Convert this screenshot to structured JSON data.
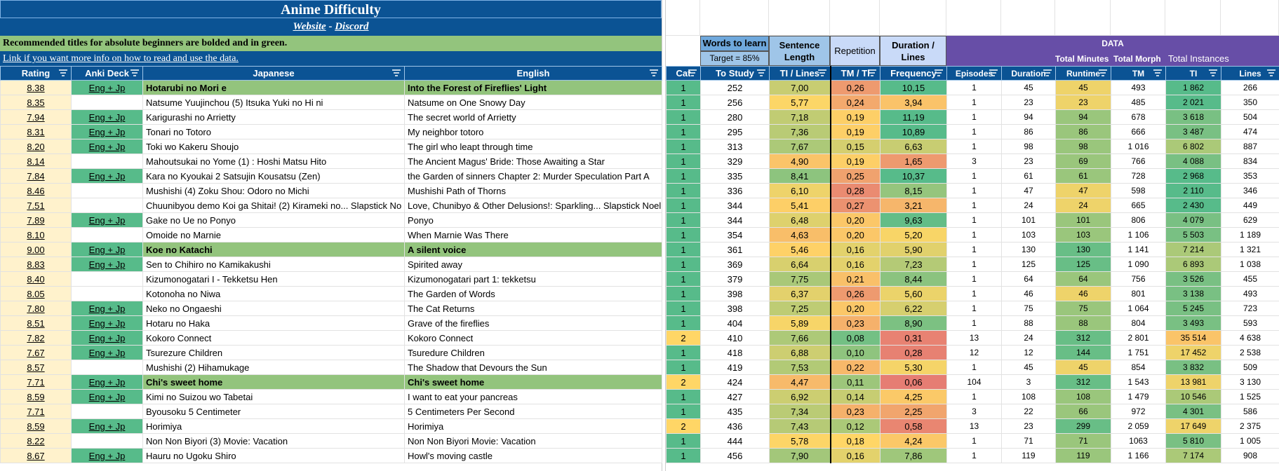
{
  "header": {
    "title": "Anime Difficulty",
    "link_website": "Website",
    "link_separator": " - ",
    "link_discord": "Discord",
    "info_line": "Recommended titles for absolute beginners are bolded and in green.",
    "info_link": "Link if you want more info on how to read and use the data."
  },
  "right_header": {
    "words_to_learn": "Words to learn",
    "target": "Target = 85%",
    "sentence_length": "Sentence Length",
    "repetition": "Repetition",
    "duration_lines": "Duration / Lines",
    "data": "DATA",
    "total_minutes": "Total Minutes",
    "total_morph": "Total Morph",
    "total_instances": "Total Instances"
  },
  "columns_left": [
    "Rating",
    "Anki Deck",
    "Japanese",
    "English"
  ],
  "columns_right": [
    "Cat",
    "To Study",
    "TI / Lines",
    "TM / TI",
    "Frequency",
    "Episodes",
    "Duration",
    "Runtime",
    "TM",
    "TI",
    "Lines"
  ],
  "colors": {
    "accent": "#0b5394",
    "green_row": "#93c47d",
    "purple": "#674ea7"
  },
  "rows": [
    {
      "rating": "8.38",
      "deck": "Eng + Jp",
      "jp": "Hotarubi no Mori e",
      "en": "Into the Forest of Fireflies' Light",
      "bold": true,
      "cat": "1",
      "study": "252",
      "til": "7,00",
      "tmti": "0,26",
      "freq": "10,15",
      "ep": "1",
      "dur": "45",
      "run": "45",
      "tm": "493",
      "ti": "1 862",
      "lines": "266"
    },
    {
      "rating": "8.35",
      "deck": "",
      "jp": "Natsume Yuujinchou (5) Itsuka Yuki no Hi ni",
      "en": "Natsume on One Snowy Day",
      "bold": false,
      "cat": "1",
      "study": "256",
      "til": "5,77",
      "tmti": "0,24",
      "freq": "3,94",
      "ep": "1",
      "dur": "23",
      "run": "23",
      "tm": "485",
      "ti": "2 021",
      "lines": "350"
    },
    {
      "rating": "7.94",
      "deck": "Eng + Jp",
      "jp": "Karigurashi no Arrietty",
      "en": "The secret world of Arrietty",
      "bold": false,
      "cat": "1",
      "study": "280",
      "til": "7,18",
      "tmti": "0,19",
      "freq": "11,19",
      "ep": "1",
      "dur": "94",
      "run": "94",
      "tm": "678",
      "ti": "3 618",
      "lines": "504"
    },
    {
      "rating": "8.31",
      "deck": "Eng + Jp",
      "jp": "Tonari no Totoro",
      "en": "My neighbor totoro",
      "bold": false,
      "cat": "1",
      "study": "295",
      "til": "7,36",
      "tmti": "0,19",
      "freq": "10,89",
      "ep": "1",
      "dur": "86",
      "run": "86",
      "tm": "666",
      "ti": "3 487",
      "lines": "474"
    },
    {
      "rating": "8.20",
      "deck": "Eng + Jp",
      "jp": "Toki wo Kakeru Shoujo",
      "en": "The girl who leapt through time",
      "bold": false,
      "cat": "1",
      "study": "313",
      "til": "7,67",
      "tmti": "0,15",
      "freq": "6,63",
      "ep": "1",
      "dur": "98",
      "run": "98",
      "tm": "1 016",
      "ti": "6 802",
      "lines": "887"
    },
    {
      "rating": "8.14",
      "deck": "",
      "jp": "Mahoutsukai no Yome (1) : Hoshi Matsu Hito",
      "en": "The Ancient Magus' Bride: Those Awaiting a Star",
      "bold": false,
      "cat": "1",
      "study": "329",
      "til": "4,90",
      "tmti": "0,19",
      "freq": "1,65",
      "ep": "3",
      "dur": "23",
      "run": "69",
      "tm": "766",
      "ti": "4 088",
      "lines": "834"
    },
    {
      "rating": "7.84",
      "deck": "Eng + Jp",
      "jp": "Kara no Kyoukai 2 Satsujin Kousatsu (Zen)",
      "en": "the Garden of sinners Chapter 2: Murder Speculation Part A",
      "bold": false,
      "cat": "1",
      "study": "335",
      "til": "8,41",
      "tmti": "0,25",
      "freq": "10,37",
      "ep": "1",
      "dur": "61",
      "run": "61",
      "tm": "728",
      "ti": "2 968",
      "lines": "353"
    },
    {
      "rating": "8.46",
      "deck": "",
      "jp": "Mushishi (4) Zoku Shou: Odoro no Michi",
      "en": "Mushishi Path of Thorns",
      "bold": false,
      "cat": "1",
      "study": "336",
      "til": "6,10",
      "tmti": "0,28",
      "freq": "8,15",
      "ep": "1",
      "dur": "47",
      "run": "47",
      "tm": "598",
      "ti": "2 110",
      "lines": "346"
    },
    {
      "rating": "7.51",
      "deck": "",
      "jp": "Chuunibyou demo Koi ga Shitai! (2) Kirameki no... Slapstick No",
      "en": "Love, Chunibyo & Other Delusions!: Sparkling... Slapstick Noel",
      "bold": false,
      "cat": "1",
      "study": "344",
      "til": "5,41",
      "tmti": "0,27",
      "freq": "3,21",
      "ep": "1",
      "dur": "24",
      "run": "24",
      "tm": "665",
      "ti": "2 430",
      "lines": "449"
    },
    {
      "rating": "7.89",
      "deck": "Eng + Jp",
      "jp": "Gake no Ue no Ponyo",
      "en": "Ponyo",
      "bold": false,
      "cat": "1",
      "study": "344",
      "til": "6,48",
      "tmti": "0,20",
      "freq": "9,63",
      "ep": "1",
      "dur": "101",
      "run": "101",
      "tm": "806",
      "ti": "4 079",
      "lines": "629"
    },
    {
      "rating": "8.10",
      "deck": "",
      "jp": "Omoide no Marnie",
      "en": "When Marnie Was There",
      "bold": false,
      "cat": "1",
      "study": "354",
      "til": "4,63",
      "tmti": "0,20",
      "freq": "5,20",
      "ep": "1",
      "dur": "103",
      "run": "103",
      "tm": "1 106",
      "ti": "5 503",
      "lines": "1 189"
    },
    {
      "rating": "9.00",
      "deck": "Eng + Jp",
      "jp": "Koe no Katachi",
      "en": "A silent voice",
      "bold": true,
      "cat": "1",
      "study": "361",
      "til": "5,46",
      "tmti": "0,16",
      "freq": "5,90",
      "ep": "1",
      "dur": "130",
      "run": "130",
      "tm": "1 141",
      "ti": "7 214",
      "lines": "1 321"
    },
    {
      "rating": "8.83",
      "deck": "Eng + Jp",
      "jp": "Sen to Chihiro no Kamikakushi",
      "en": "Spirited away",
      "bold": false,
      "cat": "1",
      "study": "369",
      "til": "6,64",
      "tmti": "0,16",
      "freq": "7,23",
      "ep": "1",
      "dur": "125",
      "run": "125",
      "tm": "1 090",
      "ti": "6 893",
      "lines": "1 038"
    },
    {
      "rating": "8.40",
      "deck": "",
      "jp": "Kizumonogatari I - Tekketsu Hen",
      "en": "Kizumonogatari part 1: tekketsu",
      "bold": false,
      "cat": "1",
      "study": "379",
      "til": "7,75",
      "tmti": "0,21",
      "freq": "8,44",
      "ep": "1",
      "dur": "64",
      "run": "64",
      "tm": "756",
      "ti": "3 526",
      "lines": "455"
    },
    {
      "rating": "8.05",
      "deck": "",
      "jp": "Kotonoha no Niwa",
      "en": "The Garden of Words",
      "bold": false,
      "cat": "1",
      "study": "398",
      "til": "6,37",
      "tmti": "0,26",
      "freq": "5,60",
      "ep": "1",
      "dur": "46",
      "run": "46",
      "tm": "801",
      "ti": "3 138",
      "lines": "493"
    },
    {
      "rating": "7.80",
      "deck": "Eng + Jp",
      "jp": "Neko no Ongaeshi",
      "en": "The Cat Returns",
      "bold": false,
      "cat": "1",
      "study": "398",
      "til": "7,25",
      "tmti": "0,20",
      "freq": "6,22",
      "ep": "1",
      "dur": "75",
      "run": "75",
      "tm": "1 064",
      "ti": "5 245",
      "lines": "723"
    },
    {
      "rating": "8.51",
      "deck": "Eng + Jp",
      "jp": "Hotaru no Haka",
      "en": "Grave of the fireflies",
      "bold": false,
      "cat": "1",
      "study": "404",
      "til": "5,89",
      "tmti": "0,23",
      "freq": "8,90",
      "ep": "1",
      "dur": "88",
      "run": "88",
      "tm": "804",
      "ti": "3 493",
      "lines": "593"
    },
    {
      "rating": "7.82",
      "deck": "Eng + Jp",
      "jp": "Kokoro Connect",
      "en": "Kokoro Connect",
      "bold": false,
      "cat": "2",
      "study": "410",
      "til": "7,66",
      "tmti": "0,08",
      "freq": "0,31",
      "ep": "13",
      "dur": "24",
      "run": "312",
      "tm": "2 801",
      "ti": "35 514",
      "lines": "4 638"
    },
    {
      "rating": "7.67",
      "deck": "Eng + Jp",
      "jp": "Tsurezure Children",
      "en": "Tsuredure Children",
      "bold": false,
      "cat": "1",
      "study": "418",
      "til": "6,88",
      "tmti": "0,10",
      "freq": "0,28",
      "ep": "12",
      "dur": "12",
      "run": "144",
      "tm": "1 751",
      "ti": "17 452",
      "lines": "2 538"
    },
    {
      "rating": "8.57",
      "deck": "",
      "jp": "Mushishi (2) Hihamukage",
      "en": "The Shadow that Devours the Sun",
      "bold": false,
      "cat": "1",
      "study": "419",
      "til": "7,53",
      "tmti": "0,22",
      "freq": "5,30",
      "ep": "1",
      "dur": "45",
      "run": "45",
      "tm": "854",
      "ti": "3 832",
      "lines": "509"
    },
    {
      "rating": "7.71",
      "deck": "Eng + Jp",
      "jp": "Chi's sweet home",
      "en": "Chi's sweet home",
      "bold": true,
      "cat": "2",
      "study": "424",
      "til": "4,47",
      "tmti": "0,11",
      "freq": "0,06",
      "ep": "104",
      "dur": "3",
      "run": "312",
      "tm": "1 543",
      "ti": "13 981",
      "lines": "3 130"
    },
    {
      "rating": "8.59",
      "deck": "Eng + Jp",
      "jp": "Kimi no Suizou wo Tabetai",
      "en": "I want to eat your pancreas",
      "bold": false,
      "cat": "1",
      "study": "427",
      "til": "6,92",
      "tmti": "0,14",
      "freq": "4,25",
      "ep": "1",
      "dur": "108",
      "run": "108",
      "tm": "1 479",
      "ti": "10 546",
      "lines": "1 525"
    },
    {
      "rating": "7.71",
      "deck": "",
      "jp": "Byousoku 5 Centimeter",
      "en": "5 Centimeters Per Second",
      "bold": false,
      "cat": "1",
      "study": "435",
      "til": "7,34",
      "tmti": "0,23",
      "freq": "2,25",
      "ep": "3",
      "dur": "22",
      "run": "66",
      "tm": "972",
      "ti": "4 301",
      "lines": "586"
    },
    {
      "rating": "8.59",
      "deck": "Eng + Jp",
      "jp": "Horimiya",
      "en": "Horimiya",
      "bold": false,
      "cat": "2",
      "study": "436",
      "til": "7,43",
      "tmti": "0,12",
      "freq": "0,58",
      "ep": "13",
      "dur": "23",
      "run": "299",
      "tm": "2 059",
      "ti": "17 649",
      "lines": "2 375"
    },
    {
      "rating": "8.22",
      "deck": "",
      "jp": "Non Non Biyori (3) Movie: Vacation",
      "en": "Non Non Biyori Movie: Vacation",
      "bold": false,
      "cat": "1",
      "study": "444",
      "til": "5,78",
      "tmti": "0,18",
      "freq": "4,24",
      "ep": "1",
      "dur": "71",
      "run": "71",
      "tm": "1063",
      "ti": "5 810",
      "lines": "1 005"
    },
    {
      "rating": "8.67",
      "deck": "Eng + Jp",
      "jp": "Hauru no Ugoku Shiro",
      "en": "Howl's moving castle",
      "bold": false,
      "cat": "1",
      "study": "456",
      "til": "7,90",
      "tmti": "0,16",
      "freq": "7,86",
      "ep": "1",
      "dur": "119",
      "run": "119",
      "tm": "1 166",
      "ti": "7 174",
      "lines": "908"
    }
  ]
}
